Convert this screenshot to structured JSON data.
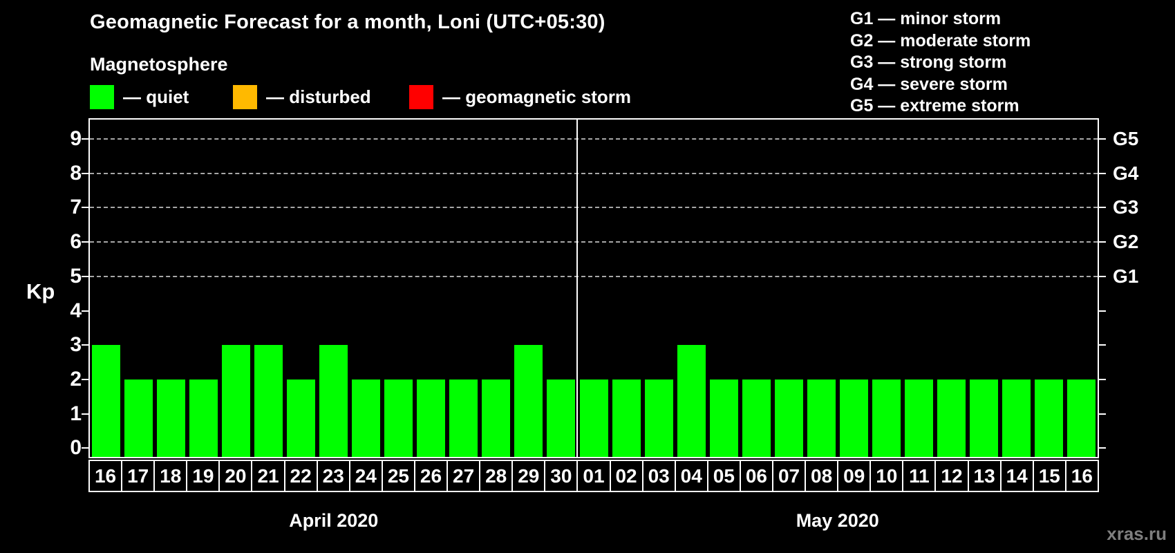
{
  "title": "Geomagnetic Forecast for a month, Loni (UTC+05:30)",
  "subtitle": "Magnetosphere",
  "legend": {
    "items": [
      {
        "name": "quiet",
        "label": "— quiet",
        "color": "#00ff00"
      },
      {
        "name": "disturbed",
        "label": "— disturbed",
        "color": "#ffb900"
      },
      {
        "name": "geomagnetic-storm",
        "label": "— geomagnetic storm",
        "color": "#ff0000"
      }
    ]
  },
  "g_legend": {
    "lines": [
      "G1 — minor storm",
      "G2 — moderate storm",
      "G3 — strong storm",
      "G4 — severe storm",
      "G5 — extreme storm"
    ]
  },
  "watermark": "xras.ru",
  "chart_data": {
    "type": "bar",
    "title": "Geomagnetic Forecast for a month, Loni (UTC+05:30)",
    "ylabel": "Kp",
    "ylim": [
      0,
      9
    ],
    "yticks": [
      0,
      1,
      2,
      3,
      4,
      5,
      6,
      7,
      8,
      9
    ],
    "grid_levels": [
      5,
      6,
      7,
      8,
      9
    ],
    "grid_style": "dashed",
    "right_axis": [
      {
        "label": "G1",
        "kp": 5
      },
      {
        "label": "G2",
        "kp": 6
      },
      {
        "label": "G3",
        "kp": 7
      },
      {
        "label": "G4",
        "kp": 8
      },
      {
        "label": "G5",
        "kp": 9
      }
    ],
    "bar_color": "#00ff00",
    "legend_position": "top",
    "months": [
      {
        "label": "April 2020",
        "days": [
          "16",
          "17",
          "18",
          "19",
          "20",
          "21",
          "22",
          "23",
          "24",
          "25",
          "26",
          "27",
          "28",
          "29",
          "30"
        ],
        "values": [
          3,
          2,
          2,
          2,
          3,
          3,
          2,
          3,
          2,
          2,
          2,
          2,
          2,
          3,
          2
        ]
      },
      {
        "label": "May 2020",
        "days": [
          "01",
          "02",
          "03",
          "04",
          "05",
          "06",
          "07",
          "08",
          "09",
          "10",
          "11",
          "12",
          "13",
          "14",
          "15",
          "16"
        ],
        "values": [
          2,
          2,
          2,
          3,
          2,
          2,
          2,
          2,
          2,
          2,
          2,
          2,
          2,
          2,
          2,
          2
        ]
      }
    ]
  }
}
